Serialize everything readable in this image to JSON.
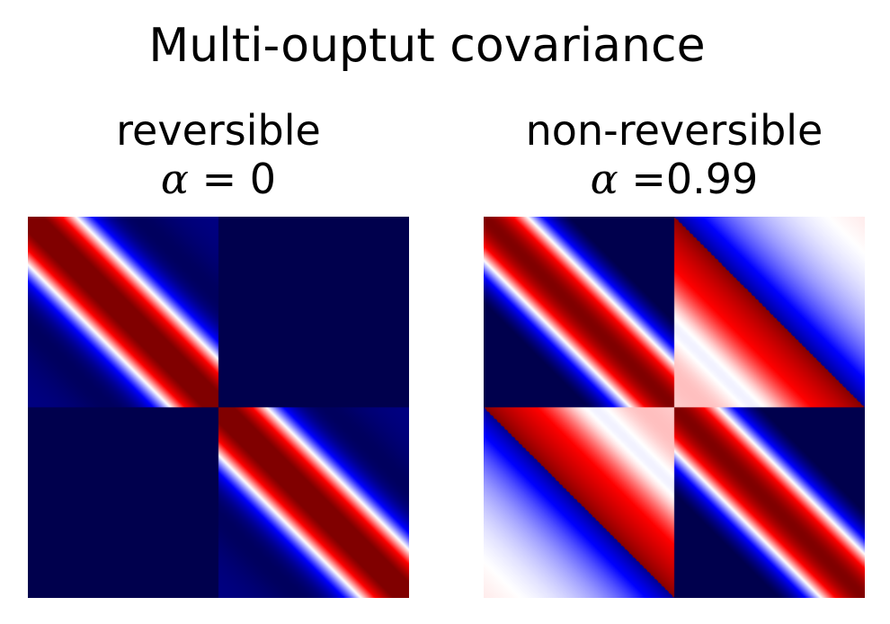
{
  "figure": {
    "title": "Multi-ouptut covariance"
  },
  "chart_data": [
    {
      "type": "heatmap",
      "title": "reversible",
      "alpha_label": "α = 0",
      "alpha": 0,
      "blocks": 2,
      "colormap": "seismic",
      "colormap_stops": [
        "#00004d",
        "#0000ff",
        "#ffffff",
        "#ff0000",
        "#800000"
      ],
      "value_range": [
        -1,
        1
      ],
      "axes_visible": false
    },
    {
      "type": "heatmap",
      "title": "non-reversible",
      "alpha_label": "α =0.99",
      "alpha": 0.99,
      "blocks": 2,
      "colormap": "seismic",
      "colormap_stops": [
        "#00004d",
        "#0000ff",
        "#ffffff",
        "#ff0000",
        "#800000"
      ],
      "value_range": [
        -1,
        1
      ],
      "axes_visible": false
    }
  ]
}
